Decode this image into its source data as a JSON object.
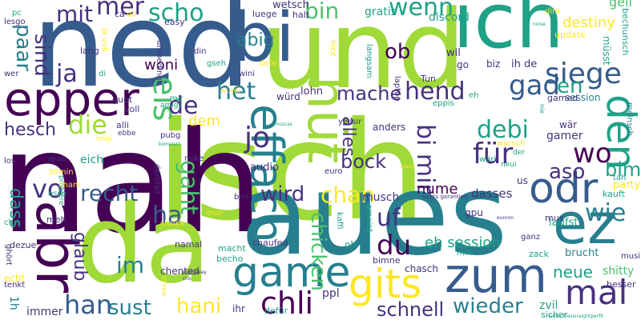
{
  "palette": {
    "deep_purple": "#440154",
    "indigo": "#46327e",
    "blue": "#365c8d",
    "steel": "#277f8e",
    "teal": "#1fa187",
    "green": "#4ac16d",
    "lime": "#a0da39",
    "yellow": "#fde725"
  },
  "words": [
    {
      "text": "isch",
      "color": "lime",
      "vertical": false
    },
    {
      "text": "nah",
      "color": "deep_purple",
      "vertical": false
    },
    {
      "text": "ned",
      "color": "blue",
      "vertical": false
    },
    {
      "text": "und",
      "color": "lime",
      "vertical": false
    },
    {
      "text": "aues",
      "color": "steel",
      "vertical": false
    },
    {
      "text": "ich",
      "color": "teal",
      "vertical": false
    },
    {
      "text": "da",
      "color": "lime",
      "vertical": false
    },
    {
      "text": "bi",
      "color": "blue",
      "vertical": false
    },
    {
      "text": "abr",
      "color": "deep_purple",
      "vertical": true
    },
    {
      "text": "epper",
      "color": "deep_purple",
      "vertical": false
    },
    {
      "text": "ez",
      "color": "steel",
      "vertical": false
    },
    {
      "text": "zum",
      "color": "blue",
      "vertical": false
    },
    {
      "text": "hüt",
      "color": "lime",
      "vertical": true
    },
    {
      "text": "effach",
      "color": "steel",
      "vertical": true
    },
    {
      "text": "odr",
      "color": "blue",
      "vertical": false
    },
    {
      "text": "gits",
      "color": "yellow",
      "vertical": false
    },
    {
      "text": "game",
      "color": "steel",
      "vertical": false
    },
    {
      "text": "den",
      "color": "teal",
      "vertical": true
    },
    {
      "text": "mal",
      "color": "indigo",
      "vertical": false
    },
    {
      "text": "chli",
      "color": "deep_purple",
      "vertical": false
    },
    {
      "text": "siege",
      "color": "blue",
      "vertical": false
    },
    {
      "text": "scho",
      "color": "teal",
      "vertical": false
    },
    {
      "text": "mer",
      "color": "indigo",
      "vertical": false
    },
    {
      "text": "mit",
      "color": "indigo",
      "vertical": false
    },
    {
      "text": "wenn",
      "color": "teal",
      "vertical": false
    },
    {
      "text": "bin",
      "color": "green",
      "vertical": false
    },
    {
      "text": "paar",
      "color": "steel",
      "vertical": true
    },
    {
      "text": "sind",
      "color": "indigo",
      "vertical": true
    },
    {
      "text": "ja",
      "color": "indigo",
      "vertical": false
    },
    {
      "text": "eis",
      "color": "green",
      "vertical": true
    },
    {
      "text": "de",
      "color": "indigo",
      "vertical": false
    },
    {
      "text": "die",
      "color": "lime",
      "vertical": false
    },
    {
      "text": "hesch",
      "color": "indigo",
      "vertical": false
    },
    {
      "text": "jo",
      "color": "indigo",
      "vertical": false
    },
    {
      "text": "het",
      "color": "steel",
      "vertical": false
    },
    {
      "text": "für",
      "color": "indigo",
      "vertical": false
    },
    {
      "text": "wo",
      "color": "deep_purple",
      "vertical": false
    },
    {
      "text": "debi",
      "color": "teal",
      "vertical": false
    },
    {
      "text": "bi mir",
      "color": "indigo",
      "vertical": true
    },
    {
      "text": "aso",
      "color": "indigo",
      "vertical": false
    },
    {
      "text": "bim",
      "color": "teal",
      "vertical": false
    },
    {
      "text": "wie",
      "color": "steel",
      "vertical": false
    },
    {
      "text": "gad",
      "color": "blue",
      "vertical": false
    },
    {
      "text": "en",
      "color": "teal",
      "vertical": false
    },
    {
      "text": "hend",
      "color": "indigo",
      "vertical": false
    },
    {
      "text": "mache",
      "color": "indigo",
      "vertical": false
    },
    {
      "text": "ob",
      "color": "deep_purple",
      "vertical": false
    },
    {
      "text": "alles",
      "color": "indigo",
      "vertical": true
    },
    {
      "text": "abig",
      "color": "steel",
      "vertical": false
    },
    {
      "text": "woni",
      "color": "deep_purple",
      "vertical": false
    },
    {
      "text": "recht",
      "color": "blue",
      "vertical": false
    },
    {
      "text": "vo",
      "color": "indigo",
      "vertical": false
    },
    {
      "text": "dass",
      "color": "teal",
      "vertical": true
    },
    {
      "text": "ha",
      "color": "blue",
      "vertical": false
    },
    {
      "text": "gaht",
      "color": "green",
      "vertical": true
    },
    {
      "text": "glaub",
      "color": "indigo",
      "vertical": true
    },
    {
      "text": "wird",
      "color": "indigo",
      "vertical": false
    },
    {
      "text": "chan",
      "color": "yellow",
      "vertical": false
    },
    {
      "text": "bock",
      "color": "indigo",
      "vertical": false
    },
    {
      "text": "uf",
      "color": "indigo",
      "vertical": false
    },
    {
      "text": "chicken",
      "color": "green",
      "vertical": true
    },
    {
      "text": "du",
      "color": "deep_purple",
      "vertical": false
    },
    {
      "text": "nume",
      "color": "deep_purple",
      "vertical": false
    },
    {
      "text": "neue",
      "color": "teal",
      "vertical": false
    },
    {
      "text": "im",
      "color": "steel",
      "vertical": false
    },
    {
      "text": "han",
      "color": "blue",
      "vertical": false
    },
    {
      "text": "sust",
      "color": "steel",
      "vertical": false
    },
    {
      "text": "hani",
      "color": "yellow",
      "vertical": false
    },
    {
      "text": "schnell",
      "color": "indigo",
      "vertical": false
    },
    {
      "text": "wieder",
      "color": "steel",
      "vertical": false
    },
    {
      "text": "eh session",
      "color": "teal",
      "vertical": false
    },
    {
      "text": "dem",
      "color": "yellow",
      "vertical": false
    },
    {
      "text": "audio",
      "color": "indigo",
      "vertical": false
    },
    {
      "text": "musch",
      "color": "indigo",
      "vertical": false
    },
    {
      "text": "dasses",
      "color": "indigo",
      "vertical": false
    },
    {
      "text": "destiny",
      "color": "yellow",
      "vertical": false
    },
    {
      "text": "geil",
      "color": "green",
      "vertical": false
    },
    {
      "text": "discord",
      "color": "teal",
      "vertical": false
    },
    {
      "text": "gratis",
      "color": "teal",
      "vertical": false
    },
    {
      "text": "wetsch",
      "color": "indigo",
      "vertical": false
    },
    {
      "text": "halt",
      "color": "indigo",
      "vertical": false
    },
    {
      "text": "luege",
      "color": "indigo",
      "vertical": false
    },
    {
      "text": "lohn",
      "color": "indigo",
      "vertical": false
    },
    {
      "text": "würd",
      "color": "indigo",
      "vertical": false
    },
    {
      "text": "eich",
      "color": "teal",
      "vertical": false
    },
    {
      "text": "1h",
      "color": "steel",
      "vertical": true
    },
    {
      "text": "immer",
      "color": "indigo",
      "vertical": false
    },
    {
      "text": "ppl",
      "color": "indigo",
      "vertical": false
    },
    {
      "text": "ihr",
      "color": "indigo",
      "vertical": false
    },
    {
      "text": "defür",
      "color": "teal",
      "vertical": false
    },
    {
      "text": "zvil",
      "color": "teal",
      "vertical": false
    },
    {
      "text": "sicher",
      "color": "teal",
      "vertical": false
    },
    {
      "text": "shitty",
      "color": "green",
      "vertical": false
    },
    {
      "text": "besser",
      "color": "indigo",
      "vertical": false
    },
    {
      "text": "brucht",
      "color": "steel",
      "vertical": false
    },
    {
      "text": "zack",
      "color": "teal",
      "vertical": false
    },
    {
      "text": "mus",
      "color": "indigo",
      "vertical": false
    },
    {
      "text": "laufst",
      "color": "teal",
      "vertical": false
    },
    {
      "text": "kauft",
      "color": "teal",
      "vertical": false
    },
    {
      "text": "tah",
      "color": "teal",
      "vertical": false
    },
    {
      "text": "party",
      "color": "yellow",
      "vertical": false
    },
    {
      "text": "gamer",
      "color": "indigo",
      "vertical": false
    },
    {
      "text": "wär",
      "color": "indigo",
      "vertical": false
    },
    {
      "text": "meinsch",
      "color": "steel",
      "vertical": true
    },
    {
      "text": "session",
      "color": "steel",
      "vertical": false
    },
    {
      "text": "gamed",
      "color": "indigo",
      "vertical": false
    },
    {
      "text": "ih de",
      "color": "indigo",
      "vertical": false
    },
    {
      "text": "biz",
      "color": "indigo",
      "vertical": false
    },
    {
      "text": "update",
      "color": "yellow",
      "vertical": false
    },
    {
      "text": "müsst",
      "color": "teal",
      "vertical": true
    },
    {
      "text": "bechunsch",
      "color": "teal",
      "vertical": true
    },
    {
      "text": "dim",
      "color": "yellow",
      "vertical": false
    },
    {
      "text": "wil",
      "color": "indigo",
      "vertical": false
    },
    {
      "text": "go",
      "color": "indigo",
      "vertical": false
    },
    {
      "text": "Tun",
      "color": "indigo",
      "vertical": false
    },
    {
      "text": "eh",
      "color": "teal",
      "vertical": false
    },
    {
      "text": "eppis",
      "color": "teal",
      "vertical": false
    },
    {
      "text": "laptop",
      "color": "indigo",
      "vertical": true
    },
    {
      "text": "langsam",
      "color": "teal",
      "vertical": true
    },
    {
      "text": "nice",
      "color": "yellow",
      "vertical": true
    },
    {
      "text": "anders",
      "color": "indigo",
      "vertical": false
    },
    {
      "text": "yessir",
      "color": "indigo",
      "vertical": false
    },
    {
      "text": "warsch",
      "color": "yellow",
      "vertical": false
    },
    {
      "text": "neui",
      "color": "teal",
      "vertical": false
    },
    {
      "text": "der",
      "color": "teal",
      "vertical": false
    },
    {
      "text": "wäri",
      "color": "teal",
      "vertical": false
    },
    {
      "text": "us",
      "color": "indigo",
      "vertical": false
    },
    {
      "text": "euro",
      "color": "indigo",
      "vertical": false
    },
    {
      "text": "gpu",
      "color": "indigo",
      "vertical": false
    },
    {
      "text": "ganz",
      "color": "indigo",
      "vertical": false
    },
    {
      "text": "kaffi",
      "color": "teal",
      "vertical": true
    },
    {
      "text": "gmeint",
      "color": "teal",
      "vertical": true
    },
    {
      "text": "oh",
      "color": "teal",
      "vertical": false
    },
    {
      "text": "min",
      "color": "teal",
      "vertical": false
    },
    {
      "text": "bimne",
      "color": "indigo",
      "vertical": false
    },
    {
      "text": "chasch",
      "color": "indigo",
      "vertical": false
    },
    {
      "text": "pc",
      "color": "teal",
      "vertical": false
    },
    {
      "text": "lesgo",
      "color": "indigo",
      "vertical": false
    },
    {
      "text": "ca",
      "color": "indigo",
      "vertical": false
    },
    {
      "text": "vil",
      "color": "yellow",
      "vertical": false
    },
    {
      "text": "easy",
      "color": "indigo",
      "vertical": false
    },
    {
      "text": "lang",
      "color": "indigo",
      "vertical": false
    },
    {
      "text": "ja voll",
      "color": "yellow",
      "vertical": true
    },
    {
      "text": "wer",
      "color": "indigo",
      "vertical": false
    },
    {
      "text": "di",
      "color": "teal",
      "vertical": false
    },
    {
      "text": "umbedingt",
      "color": "indigo",
      "vertical": true
    },
    {
      "text": "din",
      "color": "indigo",
      "vertical": false
    },
    {
      "text": "gseh",
      "color": "teal",
      "vertical": false
    },
    {
      "text": "dete",
      "color": "yellow",
      "vertical": false
    },
    {
      "text": "wini",
      "color": "indigo",
      "vertical": false
    },
    {
      "text": "würdi",
      "color": "yellow",
      "vertical": false
    },
    {
      "text": "guet",
      "color": "indigo",
      "vertical": false
    },
    {
      "text": "voll",
      "color": "indigo",
      "vertical": false
    },
    {
      "text": "mir",
      "color": "teal",
      "vertical": false
    },
    {
      "text": "amigs",
      "color": "teal",
      "vertical": false
    },
    {
      "text": "alli",
      "color": "indigo",
      "vertical": false
    },
    {
      "text": "ebbe",
      "color": "indigo",
      "vertical": false
    },
    {
      "text": "mini",
      "color": "yellow",
      "vertical": false
    },
    {
      "text": "pubg",
      "color": "indigo",
      "vertical": false
    },
    {
      "text": "mike",
      "color": "indigo",
      "vertical": false
    },
    {
      "text": "demfall",
      "color": "indigo",
      "vertical": true
    },
    {
      "text": "los",
      "color": "indigo",
      "vertical": false
    },
    {
      "text": "drah",
      "color": "indigo",
      "vertical": false
    },
    {
      "text": "30min",
      "color": "yellow",
      "vertical": false
    },
    {
      "text": "probiere",
      "color": "teal",
      "vertical": true
    },
    {
      "text": "chani",
      "color": "yellow",
      "vertical": false
    },
    {
      "text": "esse",
      "color": "teal",
      "vertical": false
    },
    {
      "text": "meh",
      "color": "indigo",
      "vertical": false
    },
    {
      "text": "bini",
      "color": "indigo",
      "vertical": false
    },
    {
      "text": "chri",
      "color": "teal",
      "vertical": false
    },
    {
      "text": "dezue",
      "color": "indigo",
      "vertical": false
    },
    {
      "text": "ghört",
      "color": "indigo",
      "vertical": true
    },
    {
      "text": "echt",
      "color": "yellow",
      "vertical": false
    },
    {
      "text": "tenkt",
      "color": "indigo",
      "vertical": false
    },
    {
      "text": "chaufe",
      "color": "yellow",
      "vertical": false
    },
    {
      "text": "namal",
      "color": "indigo",
      "vertical": false
    },
    {
      "text": "ener",
      "color": "yellow",
      "vertical": false
    },
    {
      "text": "chaufed",
      "color": "indigo",
      "vertical": false
    },
    {
      "text": "chented",
      "color": "indigo",
      "vertical": false
    },
    {
      "text": "macht",
      "color": "teal",
      "vertical": false
    },
    {
      "text": "becho",
      "color": "teal",
      "vertical": false
    },
    {
      "text": "imme",
      "color": "yellow",
      "vertical": true
    },
    {
      "text": "sichts garantiert",
      "color": "indigo",
      "vertical": false
    },
    {
      "text": "wetschiessiraightperfil",
      "color": "teal",
      "vertical": false
    },
    {
      "text": "musi",
      "color": "indigo",
      "vertical": false
    },
    {
      "text": "nix",
      "color": "teal",
      "vertical": true
    },
    {
      "text": "noise",
      "color": "teal",
      "vertical": false
    },
    {
      "text": "ready",
      "color": "yellow",
      "vertical": false
    },
    {
      "text": "kompletii",
      "color": "teal",
      "vertical": false
    },
    {
      "text": "muscas",
      "color": "teal",
      "vertical": false
    },
    {
      "text": "eunron",
      "color": "indigo",
      "vertical": false
    },
    {
      "text": "puugeeay",
      "color": "indigo",
      "vertical": false
    },
    {
      "text": "cno",
      "color": "indigo",
      "vertical": false
    }
  ]
}
